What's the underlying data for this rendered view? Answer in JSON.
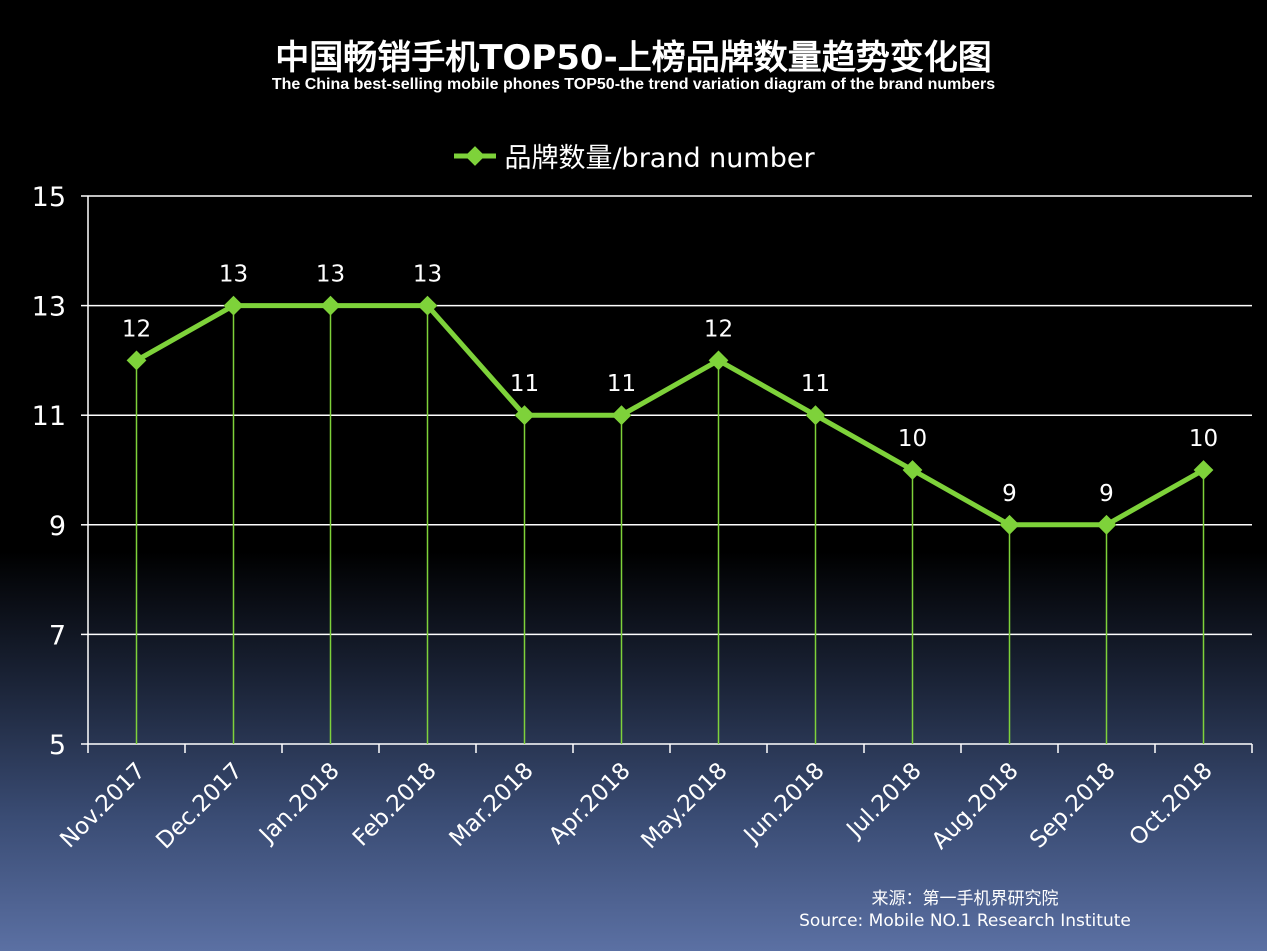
{
  "title": "中国畅销手机TOP50-上榜品牌数量趋势变化图",
  "subtitle": "The China best-selling mobile phones TOP50-the trend variation diagram of the brand numbers",
  "legend_label": "品牌数量/brand number",
  "source_cn": "来源：第一手机界研究院",
  "source_en": "Source: Mobile NO.1 Research Institute",
  "colors": {
    "series": "#7ed23a",
    "grid": "#ffffff",
    "background": "#000000"
  },
  "chart_data": {
    "type": "line",
    "title": "中国畅销手机TOP50-上榜品牌数量趋势变化图",
    "categories": [
      "Nov.2017",
      "Dec.2017",
      "Jan.2018",
      "Feb.2018",
      "Mar.2018",
      "Apr.2018",
      "May.2018",
      "Jun.2018",
      "Jul.2018",
      "Aug.2018",
      "Sep.2018",
      "Oct.2018"
    ],
    "series": [
      {
        "name": "品牌数量/brand number",
        "values": [
          12,
          13,
          13,
          13,
          11,
          11,
          12,
          11,
          10,
          9,
          9,
          10
        ]
      }
    ],
    "yticks": [
      5,
      7,
      9,
      11,
      13,
      15
    ],
    "ylim": [
      5,
      15
    ],
    "grid": true,
    "legend": "top-center",
    "data_labels": true,
    "drop_lines": true
  }
}
